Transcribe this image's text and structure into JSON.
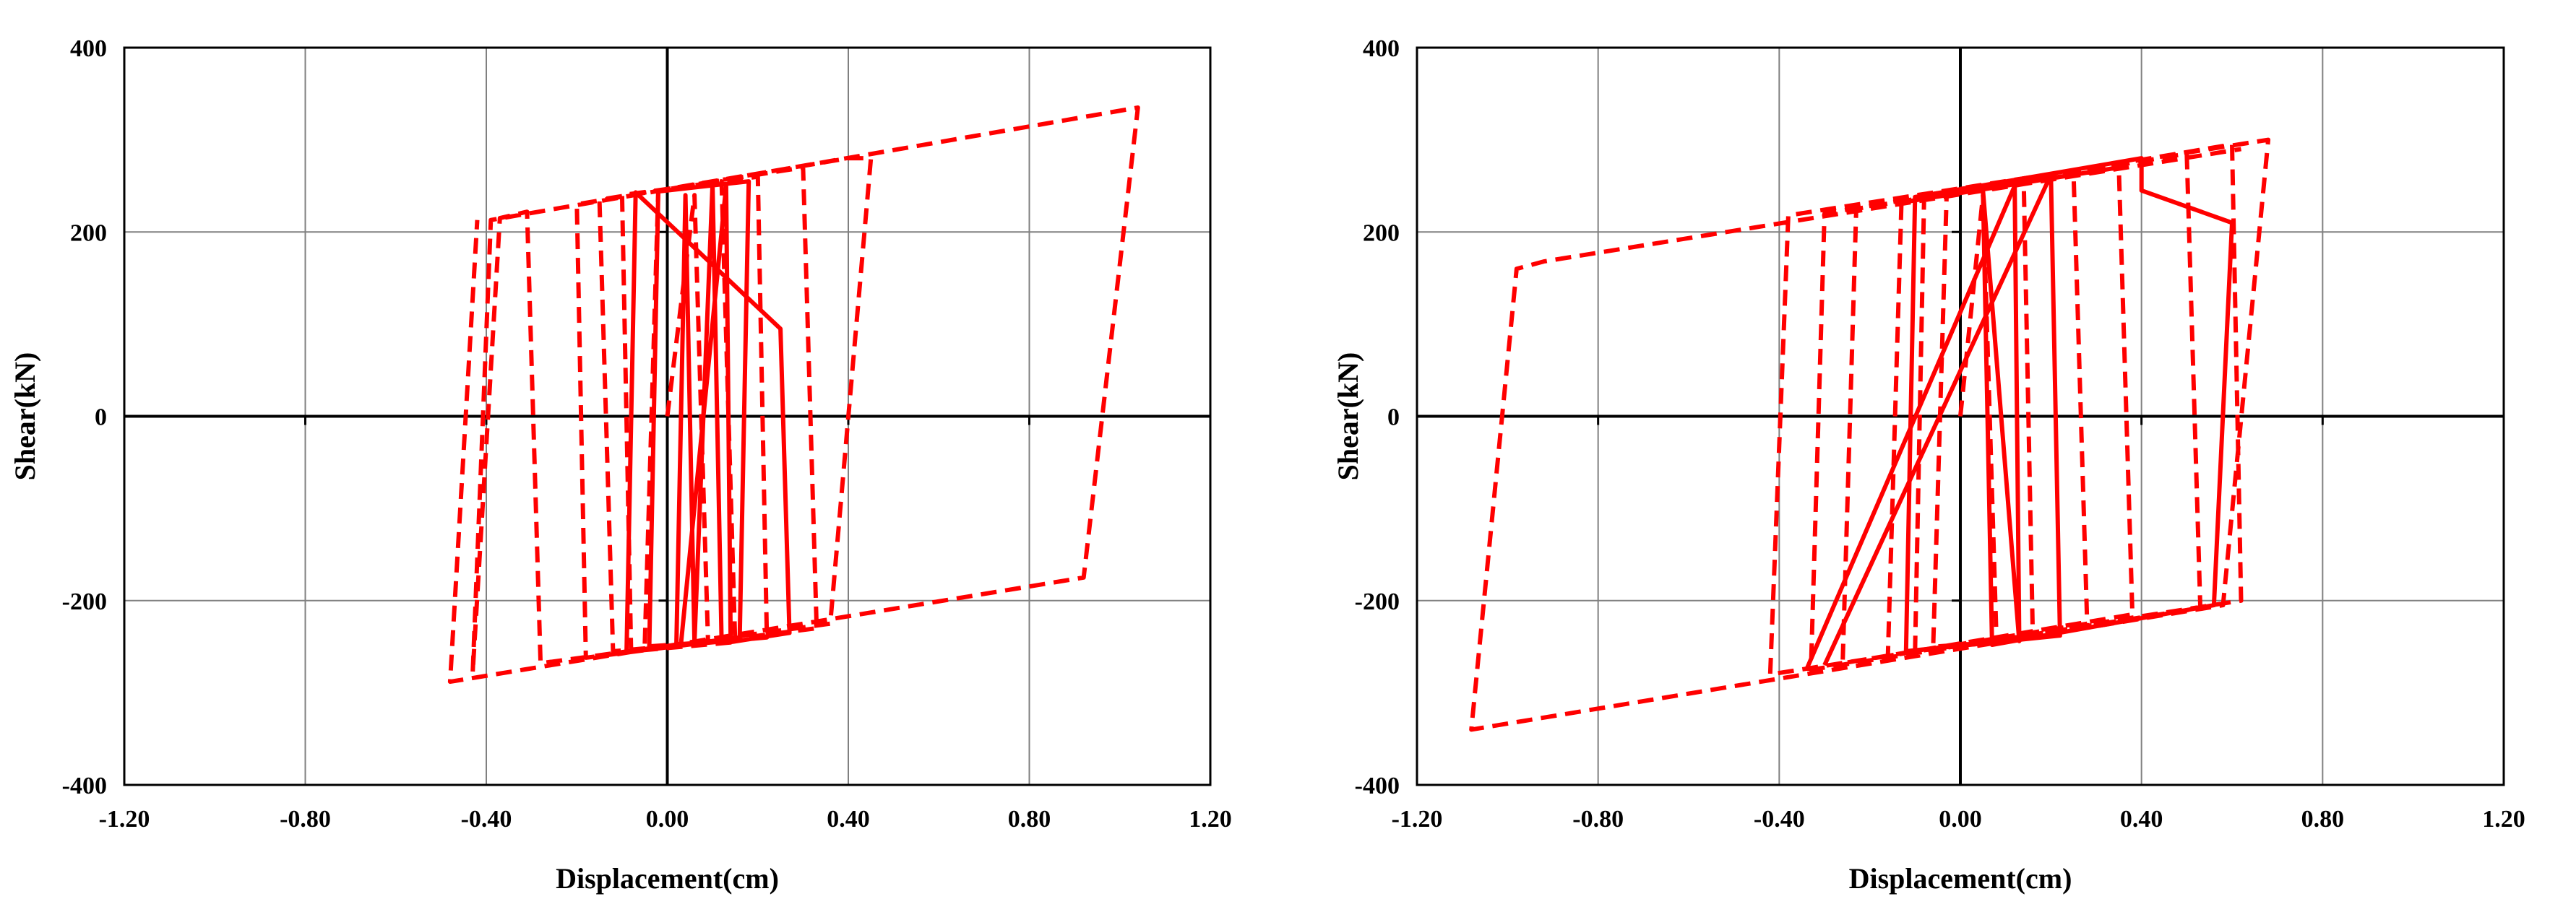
{
  "colors": {
    "series": "#ff0000",
    "grid": "#808080",
    "axis": "#000000",
    "frame": "#000000"
  },
  "chart_data": [
    {
      "type": "line",
      "xlabel": "Displacement(cm)",
      "ylabel": "Shear(kN)",
      "xlim": [
        -1.2,
        1.2
      ],
      "ylim": [
        -400,
        400
      ],
      "xticks": [
        -1.2,
        -0.8,
        -0.4,
        0.0,
        0.4,
        0.8,
        1.2
      ],
      "xtick_labels": [
        "-1.20",
        "-0.80",
        "-0.40",
        "0.00",
        "0.40",
        "0.80",
        "1.20"
      ],
      "yticks": [
        -400,
        -200,
        0,
        200,
        400
      ],
      "ytick_labels": [
        "-400",
        "-200",
        "0",
        "200",
        "400"
      ],
      "grid": true,
      "series": [
        {
          "style": "dashed",
          "points": [
            [
              0.0,
              0
            ],
            [
              0.06,
              240
            ],
            [
              0.09,
              -245
            ],
            [
              -0.05,
              -250
            ],
            [
              -0.02,
              245
            ],
            [
              0.12,
              255
            ],
            [
              0.15,
              -245
            ],
            [
              -0.08,
              -255
            ],
            [
              -0.1,
              240
            ],
            [
              0.2,
              260
            ],
            [
              0.22,
              -240
            ],
            [
              -0.12,
              -255
            ],
            [
              -0.15,
              235
            ],
            [
              0.3,
              270
            ],
            [
              0.33,
              -230
            ],
            [
              -0.18,
              -262
            ],
            [
              -0.2,
              230
            ],
            [
              0.4,
              280
            ],
            [
              0.45,
              280
            ],
            [
              0.36,
              -225
            ],
            [
              -0.28,
              -268
            ],
            [
              -0.31,
              222
            ],
            [
              -0.37,
              215
            ],
            [
              -0.43,
              -278
            ],
            [
              -0.39,
              213
            ],
            [
              1.04,
              335
            ],
            [
              0.92,
              -175
            ],
            [
              -0.48,
              -288
            ],
            [
              -0.42,
              213
            ]
          ]
        },
        {
          "style": "solid",
          "points": [
            [
              0.02,
              -250
            ],
            [
              0.04,
              240
            ],
            [
              0.06,
              -245
            ],
            [
              0.1,
              252
            ],
            [
              0.12,
              -243
            ],
            [
              -0.04,
              -252
            ],
            [
              -0.02,
              244
            ],
            [
              0.18,
              255
            ],
            [
              0.16,
              -240
            ],
            [
              -0.09,
              -256
            ],
            [
              -0.07,
              243
            ],
            [
              0.25,
              95
            ],
            [
              0.27,
              -235
            ],
            [
              0.14,
              -245
            ],
            [
              0.13,
              250
            ],
            [
              0.03,
              -248
            ]
          ]
        }
      ]
    },
    {
      "type": "line",
      "xlabel": "Displacement(cm)",
      "ylabel": "Shear(kN)",
      "xlim": [
        -1.2,
        1.2
      ],
      "ylim": [
        -400,
        400
      ],
      "xticks": [
        -1.2,
        -0.8,
        -0.4,
        0.0,
        0.4,
        0.8,
        1.2
      ],
      "xtick_labels": [
        "-1.20",
        "-0.80",
        "-0.40",
        "0.00",
        "0.40",
        "0.80",
        "1.20"
      ],
      "yticks": [
        -400,
        -200,
        0,
        200,
        400
      ],
      "ytick_labels": [
        "-400",
        "-200",
        "0",
        "200",
        "400"
      ],
      "grid": true,
      "series": [
        {
          "style": "dashed",
          "points": [
            [
              0.0,
              0
            ],
            [
              0.05,
              240
            ],
            [
              0.08,
              -245
            ],
            [
              -0.06,
              -250
            ],
            [
              -0.03,
              245
            ],
            [
              0.14,
              255
            ],
            [
              0.16,
              -240
            ],
            [
              -0.1,
              -255
            ],
            [
              -0.08,
              240
            ],
            [
              0.25,
              262
            ],
            [
              0.28,
              -225
            ],
            [
              -0.16,
              -260
            ],
            [
              -0.13,
              232
            ],
            [
              0.35,
              270
            ],
            [
              0.38,
              -215
            ],
            [
              -0.26,
              -268
            ],
            [
              -0.23,
              225
            ],
            [
              0.5,
              285
            ],
            [
              0.53,
              -208
            ],
            [
              -0.33,
              -275
            ],
            [
              -0.3,
              220
            ],
            [
              0.6,
              295
            ],
            [
              0.62,
              -200
            ],
            [
              -0.42,
              -280
            ],
            [
              -0.38,
              218
            ],
            [
              0.68,
              300
            ],
            [
              0.58,
              -205
            ],
            [
              -1.08,
              -340
            ],
            [
              -0.98,
              160
            ],
            [
              -0.92,
              168
            ],
            [
              0.62,
              290
            ]
          ]
        },
        {
          "style": "solid",
          "points": [
            [
              -0.3,
              -270
            ],
            [
              0.2,
              262
            ],
            [
              0.22,
              -238
            ],
            [
              -0.12,
              -255
            ],
            [
              -0.1,
              238
            ],
            [
              0.4,
              280
            ],
            [
              0.4,
              245
            ],
            [
              0.6,
              210
            ],
            [
              0.56,
              -205
            ],
            [
              0.07,
              -248
            ],
            [
              0.05,
              245
            ],
            [
              0.13,
              -244
            ],
            [
              0.12,
              250
            ],
            [
              -0.34,
              -275
            ]
          ]
        }
      ]
    }
  ]
}
